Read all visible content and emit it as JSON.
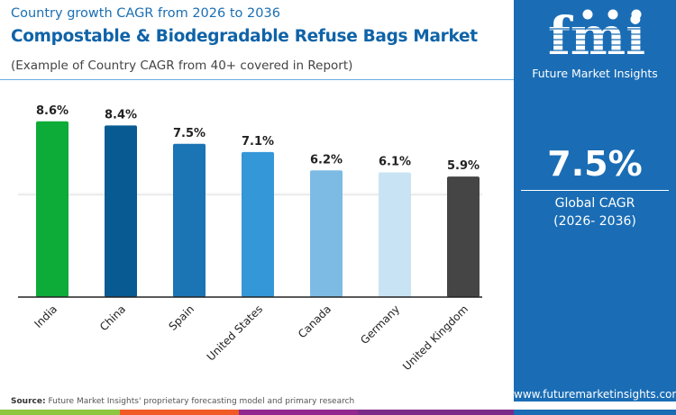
{
  "header": {
    "subtitle": "Country growth CAGR from 2026 to 2036",
    "title": "Compostable & Biodegradable Refuse Bags Market",
    "note": "(Example of Country CAGR from 40+ covered in Report)"
  },
  "panel": {
    "logo_text": "Future Market Insights",
    "logo_letters": "fmi",
    "value": "7.5%",
    "label": "Global CAGR",
    "period": "(2026- 2036)",
    "url": "www.futuremarketinsights.com",
    "bg_color": "#1a6db5"
  },
  "footer": {
    "source_label": "Source:",
    "source_text": "Future Market Insights' proprietary forecasting model and primary research",
    "strip_colors": [
      "#8dc63f",
      "#f15a24",
      "#92278f",
      "#1a6db5"
    ]
  },
  "chart_data": {
    "type": "bar",
    "categories": [
      "India",
      "China",
      "Spain",
      "United States",
      "Canada",
      "Germany",
      "United Kingdom"
    ],
    "values": [
      8.6,
      8.4,
      7.5,
      7.1,
      6.2,
      6.1,
      5.9
    ],
    "data_labels": [
      "8.6%",
      "8.4%",
      "7.5%",
      "7.1%",
      "6.2%",
      "6.1%",
      "5.9%"
    ],
    "colors": [
      "#0dab37",
      "#075a92",
      "#1b74b4",
      "#3497d8",
      "#7dbbe5",
      "#c8e4f4",
      "#454545"
    ],
    "ylim": [
      0,
      10
    ],
    "grid": true,
    "legend": "none"
  }
}
